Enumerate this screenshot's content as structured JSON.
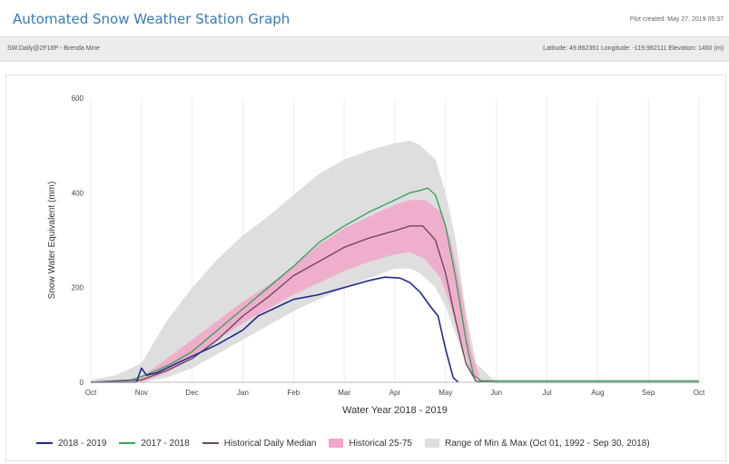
{
  "header": {
    "title": "Automated Snow Weather Station Graph",
    "plot_created": "Plot created: May 27, 2019 05:37"
  },
  "info_bar": {
    "station": "SW.Daily@2F18P - Brenda Mine",
    "location": "Latitude: 49.862361 Longitude: -119.982111 Elevation: 1460 (m)"
  },
  "colors": {
    "s2019": "#1f2b8c",
    "s2018": "#3aa35a",
    "median": "#6b4a5e",
    "p2575": "#f2a6c8",
    "minmax": "#dedede",
    "title": "#3a7ab8"
  },
  "legend": [
    {
      "key": "s2019",
      "label": "2018 - 2019",
      "kind": "line"
    },
    {
      "key": "s2018",
      "label": "2017 - 2018",
      "kind": "line"
    },
    {
      "key": "median",
      "label": "Historical Daily Median",
      "kind": "line"
    },
    {
      "key": "p2575",
      "label": "Historical 25-75",
      "kind": "box"
    },
    {
      "key": "minmax",
      "label": "Range of Min & Max (Oct 01, 1992 - Sep 30, 2018)",
      "kind": "box"
    }
  ],
  "chart_data": {
    "type": "area",
    "title": "",
    "xlabel": "Water Year 2018 - 2019",
    "ylabel": "Snow Water Equivalent (mm)",
    "ylim": [
      0,
      600
    ],
    "yticks": [
      0,
      200,
      400,
      600
    ],
    "x_ticks": [
      "Oct",
      "Nov",
      "Dec",
      "Jan",
      "Feb",
      "Mar",
      "Apr",
      "May",
      "Jun",
      "Jul",
      "Aug",
      "Sep",
      "Oct"
    ],
    "x_unit": "month index from Oct 1 (0 = Oct 1, 12 = next Oct 1)",
    "legend_position": "bottom",
    "series": [
      {
        "name": "Range of Min & Max (Oct 01, 1992 - Sep 30, 2018)",
        "kind": "band",
        "x": [
          0,
          0.5,
          1,
          1.5,
          2,
          2.5,
          3,
          3.5,
          4,
          4.5,
          5,
          5.5,
          6,
          6.3,
          6.5,
          6.8,
          7,
          7.2,
          7.4,
          7.6,
          8,
          12
        ],
        "lower": [
          0,
          0,
          0,
          10,
          30,
          60,
          90,
          120,
          150,
          175,
          200,
          220,
          240,
          240,
          230,
          200,
          160,
          100,
          40,
          5,
          0,
          0
        ],
        "upper": [
          5,
          15,
          40,
          130,
          200,
          260,
          310,
          350,
          395,
          440,
          470,
          490,
          505,
          510,
          500,
          470,
          400,
          300,
          150,
          40,
          0,
          0
        ]
      },
      {
        "name": "Historical 25-75",
        "kind": "band",
        "x": [
          0.8,
          1,
          1.5,
          2,
          2.5,
          3,
          3.5,
          4,
          4.5,
          5,
          5.5,
          6,
          6.3,
          6.6,
          6.9,
          7.1,
          7.3,
          7.5,
          7.7
        ],
        "lower": [
          0,
          0,
          20,
          50,
          90,
          125,
          155,
          185,
          210,
          235,
          255,
          270,
          275,
          260,
          220,
          160,
          90,
          20,
          0
        ],
        "upper": [
          0,
          10,
          50,
          90,
          130,
          170,
          205,
          245,
          290,
          325,
          350,
          375,
          385,
          385,
          360,
          300,
          200,
          70,
          0
        ]
      },
      {
        "name": "2017 - 2018",
        "kind": "line",
        "x": [
          0,
          0.8,
          1,
          1.3,
          1.6,
          2,
          2.5,
          3,
          3.5,
          4,
          4.5,
          5,
          5.5,
          6,
          6.3,
          6.5,
          6.65,
          6.8,
          7.0,
          7.2,
          7.4,
          7.55,
          7.7,
          8,
          12
        ],
        "values": [
          0,
          5,
          12,
          25,
          40,
          65,
          110,
          155,
          200,
          245,
          295,
          330,
          360,
          385,
          400,
          405,
          410,
          395,
          330,
          220,
          90,
          15,
          3,
          3,
          3
        ]
      },
      {
        "name": "Historical Daily Median",
        "kind": "line",
        "x": [
          0,
          1,
          1.5,
          2,
          2.5,
          3,
          3.5,
          4,
          4.5,
          5,
          5.5,
          6,
          6.3,
          6.55,
          6.8,
          7.0,
          7.2,
          7.4,
          7.6,
          8,
          12
        ],
        "values": [
          0,
          5,
          25,
          50,
          90,
          140,
          180,
          225,
          255,
          285,
          305,
          320,
          330,
          330,
          300,
          230,
          130,
          40,
          2,
          0,
          0
        ]
      },
      {
        "name": "2018 - 2019",
        "kind": "line",
        "x": [
          0,
          0.9,
          1.0,
          1.1,
          1.3,
          1.6,
          2,
          2.5,
          3,
          3.3,
          3.5,
          3.8,
          4,
          4.5,
          5,
          5.5,
          5.8,
          6.1,
          6.3,
          6.5,
          6.7,
          6.85,
          7.0,
          7.15,
          7.25
        ],
        "values": [
          0,
          0,
          30,
          15,
          20,
          35,
          55,
          80,
          110,
          140,
          150,
          165,
          175,
          185,
          200,
          215,
          222,
          220,
          210,
          190,
          160,
          140,
          70,
          10,
          0
        ]
      }
    ]
  }
}
